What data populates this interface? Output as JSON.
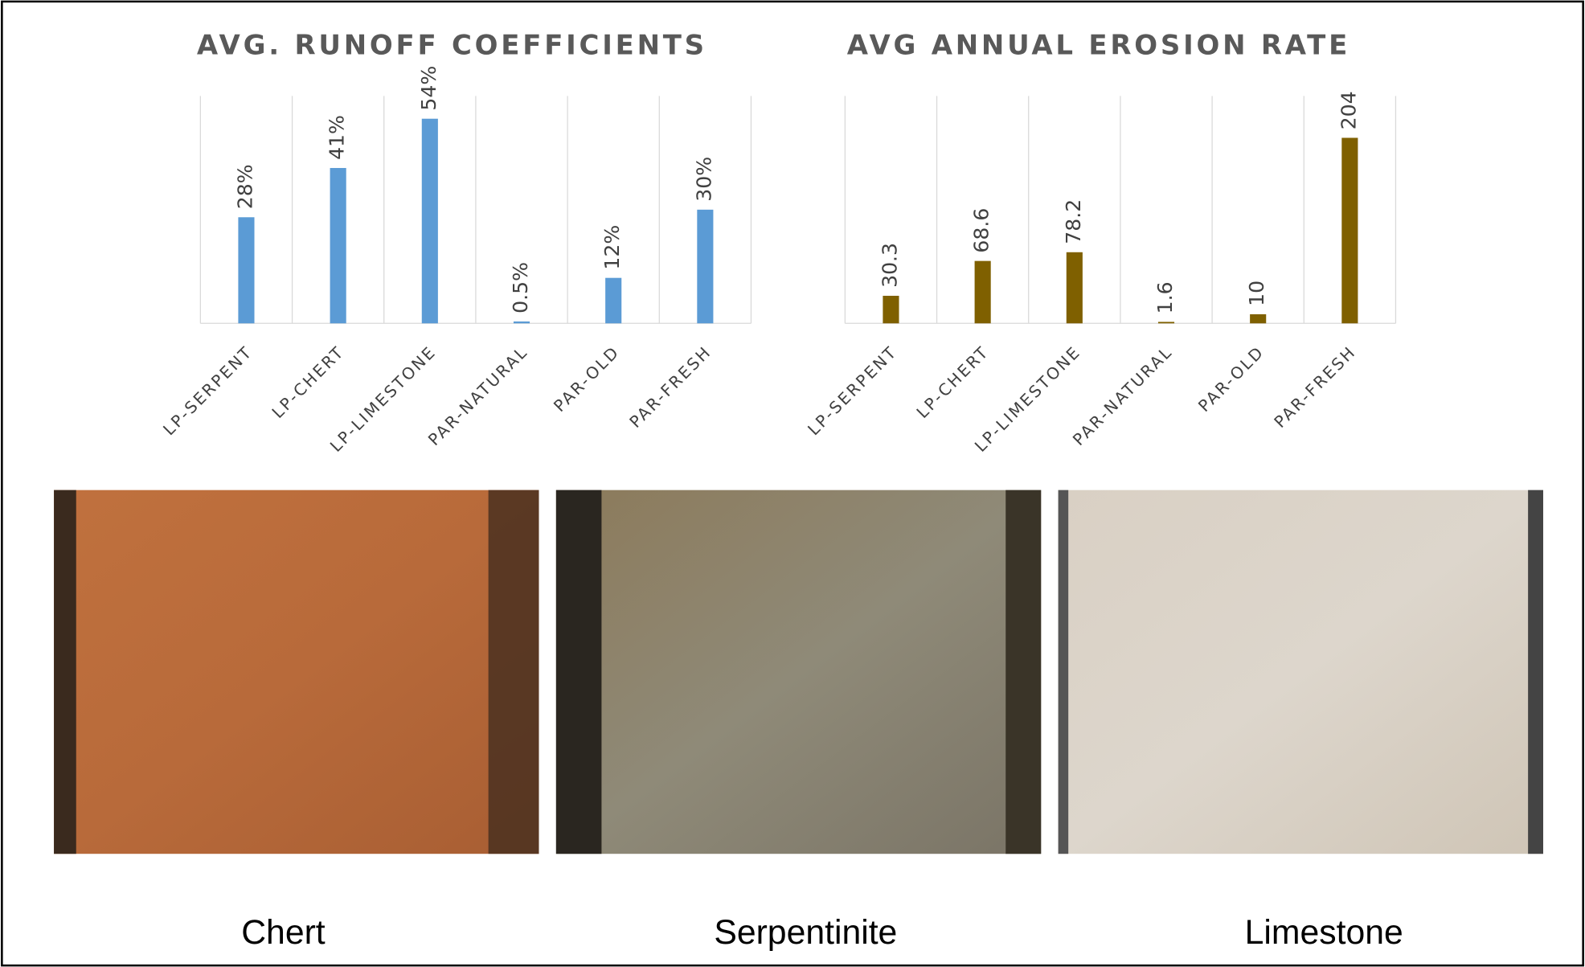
{
  "chart_data": [
    {
      "type": "bar",
      "title": "AVG. RUNOFF COEFFICIENTS",
      "categories": [
        "LP-SERPENT",
        "LP-CHERT",
        "LP-LIMESTONE",
        "PAR-NATURAL",
        "PAR-OLD",
        "PAR-FRESH"
      ],
      "values": [
        28,
        41,
        54,
        0.5,
        12,
        30
      ],
      "value_labels": [
        "28%",
        "41%",
        "54%",
        "0.5%",
        "12%",
        "30%"
      ],
      "color": "#5b9bd5",
      "ylim": [
        0,
        60
      ]
    },
    {
      "type": "bar",
      "title": "AVG ANNUAL EROSION RATE",
      "categories": [
        "LP-SERPENT",
        "LP-CHERT",
        "LP-LIMESTONE",
        "PAR-NATURAL",
        "PAR-OLD",
        "PAR-FRESH"
      ],
      "values": [
        30.3,
        68.6,
        78.2,
        1.6,
        10,
        204
      ],
      "color": "#7f6000",
      "ylim": [
        0,
        250
      ]
    }
  ],
  "captions": [
    "Chert",
    "Serpentinite",
    "Limestone"
  ]
}
